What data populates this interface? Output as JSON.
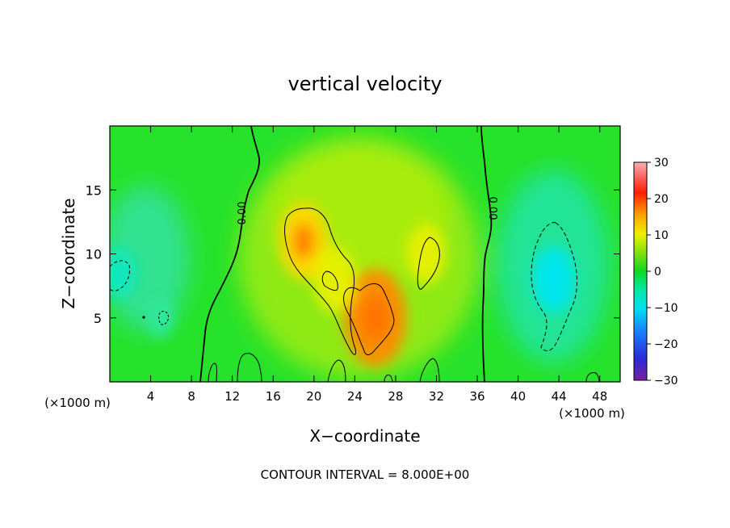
{
  "chart_data": {
    "type": "heatmap",
    "title": "vertical velocity",
    "xlabel": "X−coordinate",
    "ylabel": "Z−coordinate",
    "x_unit": "(×1000 m)",
    "x_unit_right": "(×1000 m)",
    "footer": "CONTOUR INTERVAL = 8.000E+00",
    "contour_label": "0.00",
    "xlim": [
      0,
      50
    ],
    "ylim": [
      0,
      20
    ],
    "x_ticks": [
      4,
      8,
      12,
      16,
      20,
      24,
      28,
      32,
      36,
      40,
      44,
      48
    ],
    "y_ticks": [
      5,
      10,
      15
    ],
    "colorbar": {
      "range": [
        -30,
        30
      ],
      "ticks": [
        30,
        20,
        10,
        0,
        -10,
        -20,
        -30
      ],
      "tick_labels": [
        "30",
        "20",
        "10",
        "0",
        "−10",
        "−20",
        "−30"
      ]
    },
    "field_features": [
      {
        "kind": "updraft",
        "x": 19,
        "z": 11,
        "w": 10
      },
      {
        "kind": "updraft",
        "x": 26,
        "z": 5,
        "w": 14
      },
      {
        "kind": "updraft",
        "x": 31,
        "z": 10,
        "w": 7
      },
      {
        "kind": "updraft",
        "x": 22,
        "z": 8,
        "w": 8
      },
      {
        "kind": "downdraft",
        "x": 43.5,
        "z": 8,
        "w": -8
      },
      {
        "kind": "downdraft",
        "x": 1,
        "z": 8.5,
        "w": -5
      },
      {
        "kind": "downdraft",
        "x": 5,
        "z": 5,
        "w": -3
      }
    ],
    "grid": false,
    "legend": "colorbar-right"
  }
}
